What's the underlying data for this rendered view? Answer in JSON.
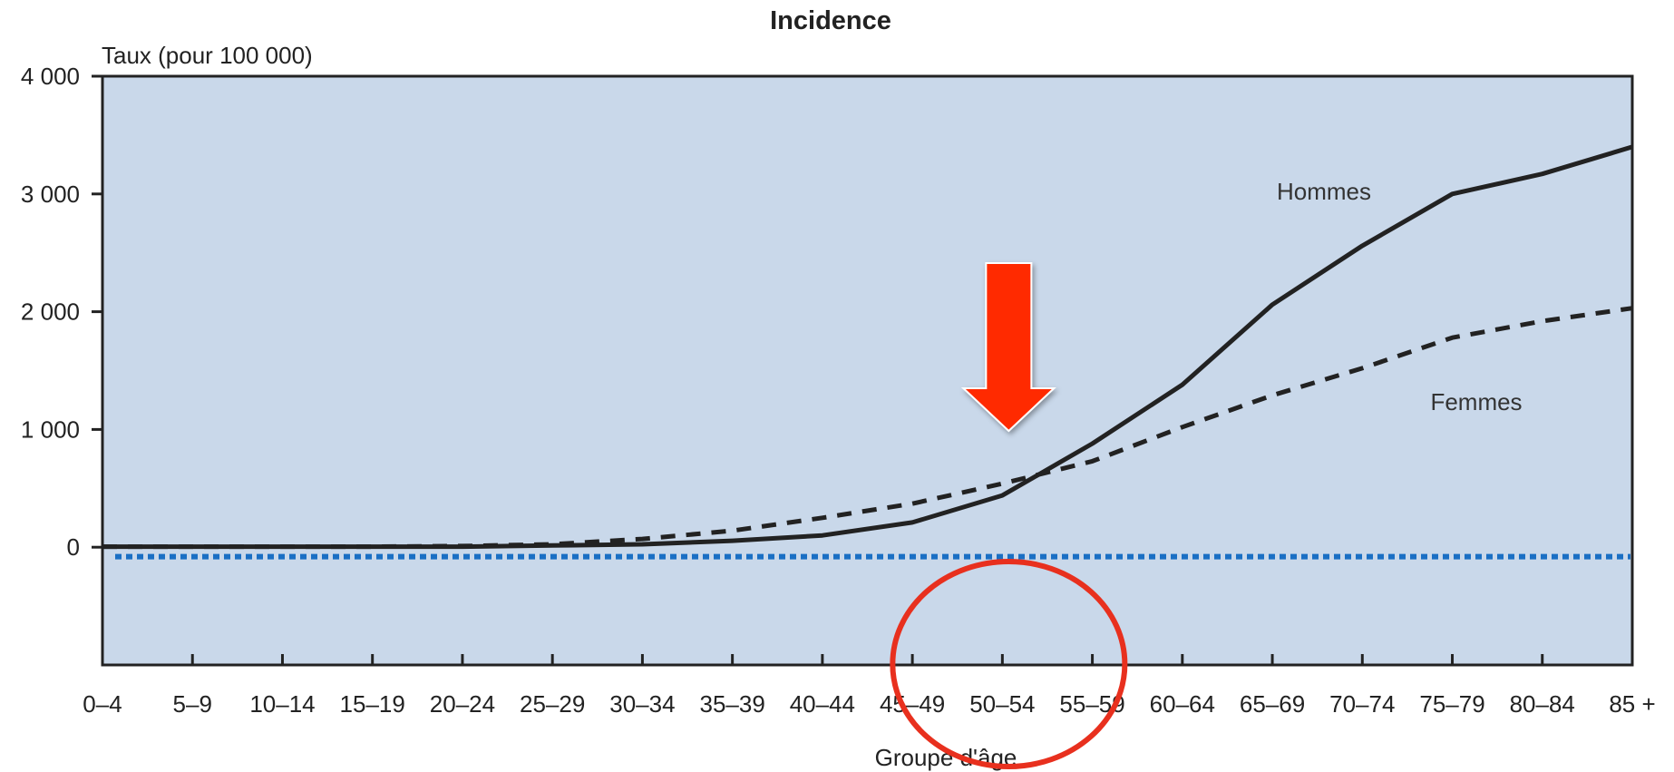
{
  "chart_data": {
    "type": "line",
    "title": "Incidence",
    "ylabel": "Taux (pour 100 000)",
    "xlabel": "Groupe d'âge",
    "categories": [
      "0–4",
      "5–9",
      "10–14",
      "15–19",
      "20–24",
      "25–29",
      "30–34",
      "35–39",
      "40–44",
      "45–49",
      "50–54",
      "55–59",
      "60–64",
      "65–69",
      "70–74",
      "75–79",
      "80–84",
      "85 +"
    ],
    "y_ticks": [
      {
        "value": 0,
        "label": "0"
      },
      {
        "value": 1000,
        "label": "1 000"
      },
      {
        "value": 2000,
        "label": "2 000"
      },
      {
        "value": 3000,
        "label": "3 000"
      },
      {
        "value": 4000,
        "label": "4 000"
      }
    ],
    "ylim": [
      -1000,
      4000
    ],
    "series": [
      {
        "name": "Hommes",
        "line_style": "solid",
        "color": "#222222",
        "values": [
          5,
          5,
          5,
          5,
          5,
          15,
          25,
          55,
          100,
          210,
          440,
          880,
          1380,
          2060,
          2560,
          3000,
          3170,
          3400
        ]
      },
      {
        "name": "Femmes",
        "line_style": "dashed",
        "color": "#222222",
        "values": [
          5,
          5,
          5,
          5,
          10,
          25,
          70,
          140,
          250,
          370,
          540,
          730,
          1020,
          1290,
          1520,
          1780,
          1920,
          2030
        ]
      }
    ],
    "reference_line": {
      "value": -80,
      "color": "#1a6fc4",
      "style": "dotted"
    },
    "annotations": {
      "arrow": {
        "color": "#ff2a00",
        "category": "50–54"
      },
      "circle": {
        "color": "#e8301e",
        "category": "50–54"
      }
    },
    "plot_background": "#c9d8ea",
    "grid": false,
    "legend": "inline labels"
  }
}
